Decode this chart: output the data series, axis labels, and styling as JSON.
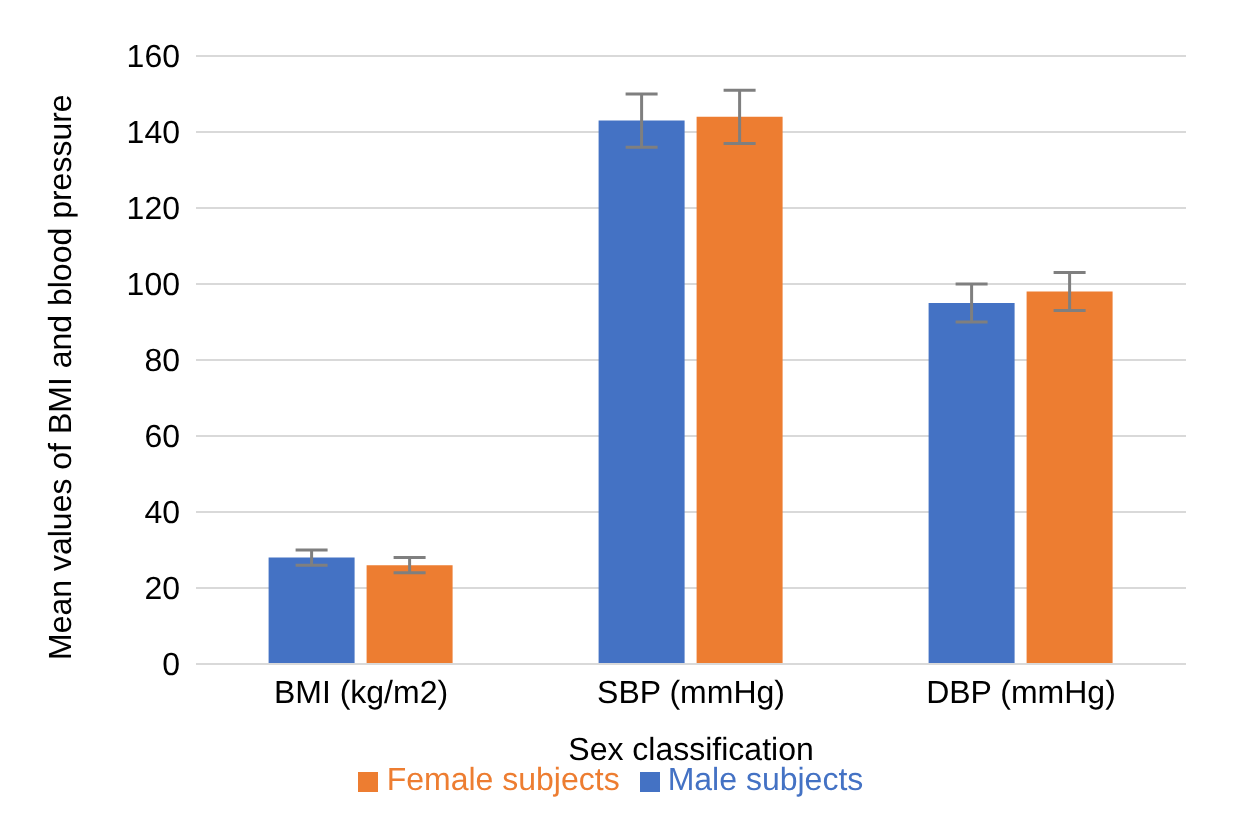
{
  "chart_data": {
    "type": "bar",
    "xlabel": "Sex classification",
    "ylabel": "Mean values of BMI and blood pressure",
    "categories": [
      "BMI (kg/m2)",
      "SBP (mmHg)",
      "DBP (mmHg)"
    ],
    "series": [
      {
        "name": "Male subjects",
        "color": "#4472c4",
        "values": [
          28,
          143,
          95
        ],
        "errors": [
          2,
          7,
          5
        ]
      },
      {
        "name": "Female subjects",
        "color": "#ed7d31",
        "values": [
          26,
          144,
          98
        ],
        "errors": [
          2,
          7,
          5
        ]
      }
    ],
    "ylim": [
      0,
      160
    ],
    "yticks": [
      0,
      20,
      40,
      60,
      80,
      100,
      120,
      140,
      160
    ],
    "grid": "y",
    "legend": "bottom"
  }
}
